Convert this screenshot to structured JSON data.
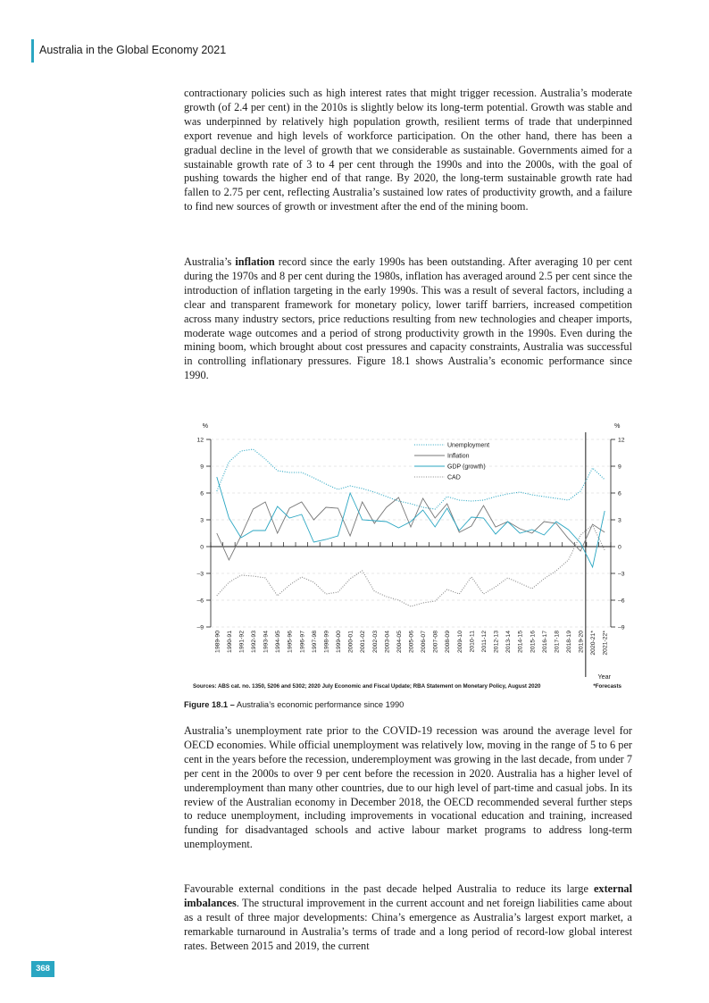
{
  "header": {
    "title": "Australia in the Global Economy 2021",
    "accent_color": "#2aa6c2"
  },
  "paragraphs": {
    "p1": "contractionary policies such as high interest rates that might trigger recession. Australia’s moderate growth (of 2.4 per cent) in the 2010s is slightly below its long-term potential. Growth was stable and was underpinned by relatively high population growth, resilient terms of trade that underpinned export revenue and high levels of workforce participation. On the other hand, there has been a gradual decline in the level of growth that we considerable as sustainable. Governments aimed for a sustainable growth rate of 3 to 4 per cent through the 1990s and into the 2000s, with the goal of pushing towards the higher end of that range. By 2020, the long-term sustainable growth rate had fallen to 2.75 per cent, reflecting Australia’s sustained low rates of productivity growth, and a failure to find new sources of growth or investment after the end of the mining boom.",
    "p2_before": "Australia’s ",
    "p2_bold": "inflation",
    "p2_after": " record since the early 1990s has been outstanding. After averaging 10 per cent during the 1970s and 8 per cent during the 1980s, inflation has averaged around 2.5 per cent since the introduction of inflation targeting in the early 1990s. This was a result of several factors, including a clear and transparent framework for monetary policy, lower tariff barriers, increased competition across many industry sectors, price reductions resulting from new technologies and cheaper imports, moderate wage outcomes and a period of strong productivity growth in the 1990s. Even during the mining boom, which brought about cost pressures and capacity constraints, Australia was successful in controlling inflationary pressures. Figure 18.1 shows Australia’s economic performance since 1990.",
    "p3": "Australia’s unemployment rate prior to the COVID-19 recession was around the average level for OECD economies. While official unemployment was relatively low, moving in the range of 5 to 6 per cent in the years before the recession, underemployment was growing in the last decade, from under 7 per cent in the 2000s to over 9 per cent before the recession in 2020. Australia has a higher level of underemployment than many other countries, due to our high level of part-time and casual jobs. In its review of the Australian economy in December 2018, the OECD recommended several further steps to reduce unemployment, including improvements in vocational education and training, increased funding for disadvantaged schools and active labour market programs to address long-term unemployment.",
    "p4_before": "Favourable external conditions in the past decade helped Australia to reduce its large ",
    "p4_bold": "external imbalances",
    "p4_after": ". The structural improvement in the current account and net foreign liabilities came about as a result of three major developments: China’s emergence as Australia’s largest export market, a remarkable turnaround in Australia’s terms of trade and a long period of record-low global interest rates. Between 2015 and 2019, the current"
  },
  "figure": {
    "label": "Figure 18.1 –",
    "caption": " Australia’s economic performance since 1990",
    "sources": "Sources: ABS cat. no. 1350, 5206 and 5302; 2020 July Economic and Fiscal Update; RBA Statement on Monetary Policy, August 2020",
    "forecast_note": "*Forecasts"
  },
  "chart_data": {
    "type": "line",
    "ylabel_left": "%",
    "ylabel_right": "%",
    "xlabel": "Year",
    "ylim": [
      -9,
      12
    ],
    "yticks": [
      12,
      9,
      6,
      3,
      0,
      -3,
      -6,
      -9
    ],
    "categories": [
      "1989-90",
      "1990-91",
      "1991-92",
      "1992-93",
      "1993-94",
      "1994-95",
      "1995-96",
      "1996-97",
      "1997-98",
      "1998-99",
      "1999-00",
      "2000-01",
      "2001-02",
      "2002-03",
      "2003-04",
      "2004-05",
      "2005-06",
      "2006-07",
      "2007-08",
      "2008-09",
      "2009-10",
      "2010-11",
      "2011-12",
      "2012-13",
      "2013-14",
      "2014-15",
      "2015-16",
      "2016-17",
      "2017-18",
      "2018-19",
      "2019-20",
      "2020-21*",
      "2021-22*"
    ],
    "series": [
      {
        "name": "Unemployment",
        "color": "#2aa6c2",
        "style": "dotted",
        "values": [
          6.2,
          9.5,
          10.7,
          10.9,
          9.8,
          8.5,
          8.3,
          8.3,
          7.7,
          7.0,
          6.4,
          6.8,
          6.5,
          6.1,
          5.6,
          5.1,
          4.8,
          4.4,
          4.2,
          5.6,
          5.2,
          5.1,
          5.2,
          5.6,
          5.9,
          6.1,
          5.8,
          5.6,
          5.4,
          5.2,
          6.2,
          8.8,
          7.5
        ]
      },
      {
        "name": "Inflation",
        "color": "#777777",
        "style": "solid",
        "values": [
          1.5,
          -1.5,
          1.2,
          4.2,
          5.0,
          1.5,
          4.3,
          5.0,
          3.0,
          4.4,
          4.3,
          1.2,
          5.0,
          2.6,
          4.4,
          5.5,
          2.2,
          5.4,
          3.2,
          4.8,
          1.6,
          2.3,
          4.6,
          2.2,
          2.8,
          2.0,
          1.5,
          2.8,
          2.6,
          0.9,
          -0.5,
          2.5,
          1.6
        ]
      },
      {
        "name": "GDP (growth)",
        "color": "#2aa6c2",
        "style": "solid",
        "values": [
          7.8,
          3.2,
          1.0,
          1.8,
          1.8,
          4.5,
          3.2,
          3.6,
          0.5,
          0.8,
          1.2,
          6.0,
          3.0,
          2.9,
          2.8,
          2.1,
          2.8,
          4.1,
          2.2,
          4.3,
          1.8,
          3.3,
          3.2,
          1.4,
          2.8,
          1.5,
          1.9,
          1.3,
          2.8,
          1.9,
          0.4,
          -2.3,
          4.0
        ]
      },
      {
        "name": "CAD",
        "color": "#888888",
        "style": "dotted",
        "values": [
          -5.5,
          -4.0,
          -3.2,
          -3.3,
          -3.5,
          -5.5,
          -4.3,
          -3.4,
          -4.0,
          -5.3,
          -5.1,
          -3.6,
          -2.7,
          -5.0,
          -5.6,
          -6.0,
          -6.7,
          -6.3,
          -6.1,
          -4.8,
          -5.3,
          -3.4,
          -5.3,
          -4.5,
          -3.5,
          -4.1,
          -4.7,
          -3.6,
          -2.7,
          -1.5,
          1.3,
          2.4,
          -0.4
        ]
      }
    ]
  }
}
